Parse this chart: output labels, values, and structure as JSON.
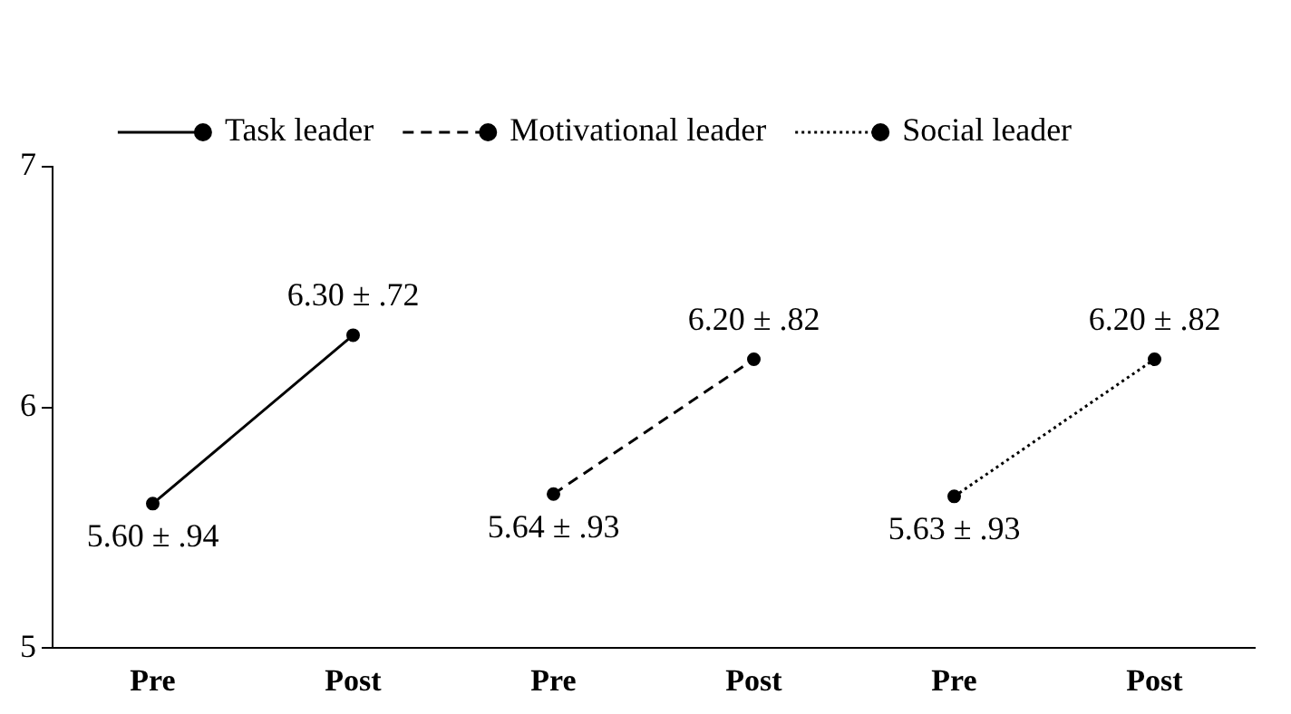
{
  "chart_data": {
    "type": "line",
    "categories": [
      "Pre",
      "Post",
      "Pre",
      "Post",
      "Pre",
      "Post"
    ],
    "series": [
      {
        "name": "Task leader",
        "color": "#000000",
        "line_style": "solid",
        "values": [
          5.6,
          6.3,
          null,
          null,
          null,
          null
        ],
        "value_labels": [
          "5.60 ± .94",
          "6.30 ± .72",
          null,
          null,
          null,
          null
        ]
      },
      {
        "name": "Motivational leader",
        "color": "#000000",
        "line_style": "dashed",
        "values": [
          null,
          null,
          5.64,
          6.2,
          null,
          null
        ],
        "value_labels": [
          null,
          null,
          "5.64 ± .93",
          "6.20 ± .82",
          null,
          null
        ]
      },
      {
        "name": "Social leader",
        "color": "#000000",
        "line_style": "dotted",
        "values": [
          null,
          null,
          null,
          null,
          5.63,
          6.2
        ],
        "value_labels": [
          null,
          null,
          null,
          null,
          "5.63 ± .93",
          "6.20 ± .82"
        ]
      }
    ],
    "ylim": [
      5,
      7
    ],
    "yticks": [
      5,
      6,
      7
    ],
    "grid": false,
    "legend": "top",
    "marker": "circle"
  }
}
